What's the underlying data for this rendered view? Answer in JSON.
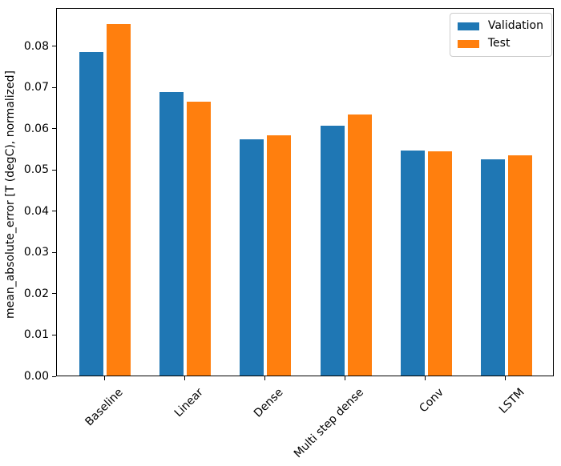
{
  "chart_data": {
    "type": "bar",
    "categories": [
      "Baseline",
      "Linear",
      "Dense",
      "Multi step dense",
      "Conv",
      "LSTM"
    ],
    "series": [
      {
        "name": "Validation",
        "color": "#1f77b4",
        "values": [
          0.0785,
          0.0687,
          0.0572,
          0.0605,
          0.0545,
          0.0524
        ]
      },
      {
        "name": "Test",
        "color": "#ff7f0e",
        "values": [
          0.0853,
          0.0664,
          0.0583,
          0.0633,
          0.0543,
          0.0533
        ]
      }
    ],
    "title": "",
    "xlabel": "",
    "ylabel": "mean_absolute_error [T (degC), normalized]",
    "ylim": [
      0,
      0.0893
    ],
    "xlim": [
      -0.6,
      5.6
    ],
    "yticks": [
      0.0,
      0.01,
      0.02,
      0.03,
      0.04,
      0.05,
      0.06,
      0.07,
      0.08
    ],
    "ytick_decimals": 2,
    "bar_width": 0.3,
    "bar_offset": 0.17,
    "grid": false,
    "x_tick_rotation_deg": 45,
    "legend_position": "upper right"
  }
}
